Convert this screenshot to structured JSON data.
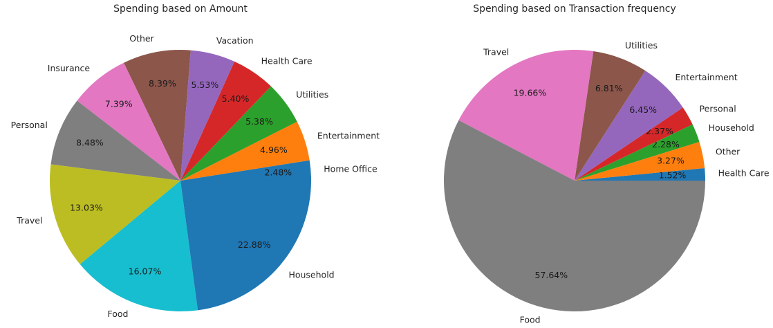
{
  "chart_data": [
    {
      "type": "pie",
      "title": "Spending based on Amount",
      "slices": [
        {
          "label": "Home Office",
          "value": 2.48,
          "pct_label": "2.48%",
          "color": "#1f77b4"
        },
        {
          "label": "Entertainment",
          "value": 4.96,
          "pct_label": "4.96%",
          "color": "#ff7f0e"
        },
        {
          "label": "Utilities",
          "value": 5.38,
          "pct_label": "5.38%",
          "color": "#2ca02c"
        },
        {
          "label": "Health Care",
          "value": 5.4,
          "pct_label": "5.40%",
          "color": "#d62728"
        },
        {
          "label": "Vacation",
          "value": 5.53,
          "pct_label": "5.53%",
          "color": "#9467bd"
        },
        {
          "label": "Other",
          "value": 8.39,
          "pct_label": "8.39%",
          "color": "#8c564b"
        },
        {
          "label": "Insurance",
          "value": 7.39,
          "pct_label": "7.39%",
          "color": "#e377c2"
        },
        {
          "label": "Personal",
          "value": 8.48,
          "pct_label": "8.48%",
          "color": "#7f7f7f"
        },
        {
          "label": "Travel",
          "value": 13.03,
          "pct_label": "13.03%",
          "color": "#bcbd22"
        },
        {
          "label": "Food",
          "value": 16.07,
          "pct_label": "16.07%",
          "color": "#17becf"
        },
        {
          "label": "Household",
          "value": 22.88,
          "pct_label": "22.88%",
          "color": "#1f77b4"
        }
      ]
    },
    {
      "type": "pie",
      "title": "Spending based on Transaction frequency",
      "slices": [
        {
          "label": "Health Care",
          "value": 1.52,
          "pct_label": "1.52%",
          "color": "#1f77b4"
        },
        {
          "label": "Other",
          "value": 3.27,
          "pct_label": "3.27%",
          "color": "#ff7f0e"
        },
        {
          "label": "Household",
          "value": 2.28,
          "pct_label": "2.28%",
          "color": "#2ca02c"
        },
        {
          "label": "Personal",
          "value": 2.37,
          "pct_label": "2.37%",
          "color": "#d62728"
        },
        {
          "label": "Entertainment",
          "value": 6.45,
          "pct_label": "6.45%",
          "color": "#9467bd"
        },
        {
          "label": "Utilities",
          "value": 6.81,
          "pct_label": "6.81%",
          "color": "#8c564b"
        },
        {
          "label": "Travel",
          "value": 19.66,
          "pct_label": "19.66%",
          "color": "#e377c2"
        },
        {
          "label": "Food",
          "value": 57.64,
          "pct_label": "57.64%",
          "color": "#7f7f7f"
        }
      ]
    }
  ]
}
